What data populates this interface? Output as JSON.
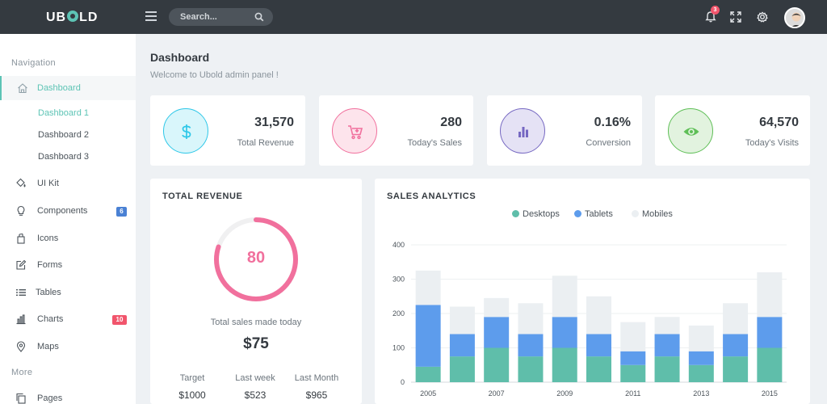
{
  "topbar": {
    "logo_left": "UB",
    "logo_right": "LD",
    "search_placeholder": "Search...",
    "notification_count": "3"
  },
  "sidebar": {
    "nav_title": "Navigation",
    "more_title": "More",
    "items": [
      {
        "label": "Dashboard",
        "icon": "home-icon"
      },
      {
        "label": "UI Kit",
        "icon": "paint-bucket-icon"
      },
      {
        "label": "Components",
        "icon": "lightbulb-icon",
        "badge": "6"
      },
      {
        "label": "Icons",
        "icon": "gift-icon"
      },
      {
        "label": "Forms",
        "icon": "edit-icon"
      },
      {
        "label": "Tables",
        "icon": "list-icon"
      },
      {
        "label": "Charts",
        "icon": "bar-chart-icon",
        "badge": "10"
      },
      {
        "label": "Maps",
        "icon": "map-pin-icon"
      },
      {
        "label": "Pages",
        "icon": "copy-icon"
      }
    ],
    "dashboard_sub": [
      "Dashboard 1",
      "Dashboard 2",
      "Dashboard 3"
    ],
    "colors": {
      "badge_blue": "#4a81d4",
      "badge_pink": "#f1556c",
      "accent": "#5dc4b5"
    }
  },
  "page": {
    "title": "Dashboard",
    "subtitle": "Welcome to Ubold admin panel !"
  },
  "stats": [
    {
      "value": "31,570",
      "label": "Total Revenue",
      "icon": "dollar-icon",
      "color": "#2dc7e8"
    },
    {
      "value": "280",
      "label": "Today's Sales",
      "icon": "cart-icon",
      "color": "#f1709d"
    },
    {
      "value": "0.16%",
      "label": "Conversion",
      "icon": "bar-chart-icon",
      "color": "#7668c2"
    },
    {
      "value": "64,570",
      "label": "Today's Visits",
      "icon": "eye-icon",
      "color": "#5fbf57"
    }
  ],
  "revenue": {
    "title": "TOTAL REVENUE",
    "gauge_value": "80",
    "gauge_fraction": 0.8,
    "caption": "Total sales made today",
    "amount": "$75",
    "columns": [
      {
        "label": "Target",
        "value": "$1000"
      },
      {
        "label": "Last week",
        "value": "$523"
      },
      {
        "label": "Last Month",
        "value": "$965"
      }
    ]
  },
  "sales": {
    "title": "SALES ANALYTICS"
  },
  "chart_data": {
    "type": "bar",
    "stacked": true,
    "categories": [
      "2005",
      "2006",
      "2007",
      "2008",
      "2009",
      "2010",
      "2011",
      "2012",
      "2013",
      "2014",
      "2015"
    ],
    "x_tick_labels": [
      "2005",
      "2007",
      "2009",
      "2011",
      "2013",
      "2015"
    ],
    "series": [
      {
        "name": "Desktops",
        "color": "#5fbeaa",
        "values": [
          45,
          75,
          100,
          75,
          100,
          75,
          50,
          75,
          50,
          75,
          100
        ]
      },
      {
        "name": "Tablets",
        "color": "#5d9cec",
        "values": [
          180,
          65,
          90,
          65,
          90,
          65,
          40,
          65,
          40,
          65,
          90
        ]
      },
      {
        "name": "Mobiles",
        "color": "#ebeff2",
        "values": [
          100,
          80,
          55,
          90,
          120,
          110,
          85,
          50,
          75,
          90,
          130
        ]
      }
    ],
    "ylim": [
      0,
      400
    ],
    "yticks": [
      0,
      100,
      200,
      300,
      400
    ],
    "legend": "top-center",
    "grid": true
  }
}
